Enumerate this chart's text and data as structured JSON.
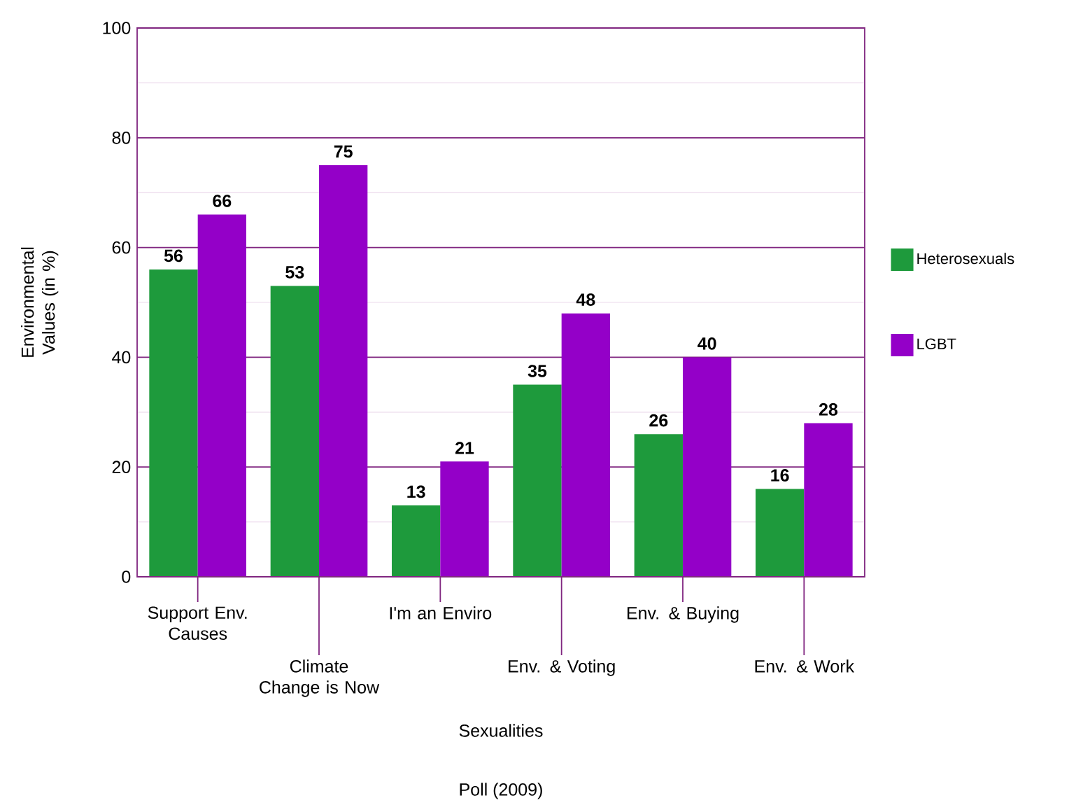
{
  "chart_data": {
    "type": "bar",
    "xlabel": "Sexualities",
    "ylabel": "Environmental Values (in %)",
    "categories": [
      "Support Env. Causes",
      "Climate Change is Now",
      "I'm an Enviro",
      "Env. & Voting",
      "Env. & Buying",
      "Env. & Work"
    ],
    "series": [
      {
        "name": "Heterosexuals",
        "color": "#1e9a3c",
        "values": [
          56,
          53,
          13,
          35,
          26,
          16
        ]
      },
      {
        "name": "LGBT",
        "color": "#9400c8",
        "values": [
          66,
          75,
          21,
          48,
          40,
          28
        ]
      }
    ],
    "ylim": [
      0,
      100
    ],
    "yticks": [
      0,
      20,
      40,
      60,
      80,
      100
    ],
    "grid": true,
    "legend": "right",
    "data_labels": true,
    "annotations": [
      "Poll (2009)"
    ]
  }
}
